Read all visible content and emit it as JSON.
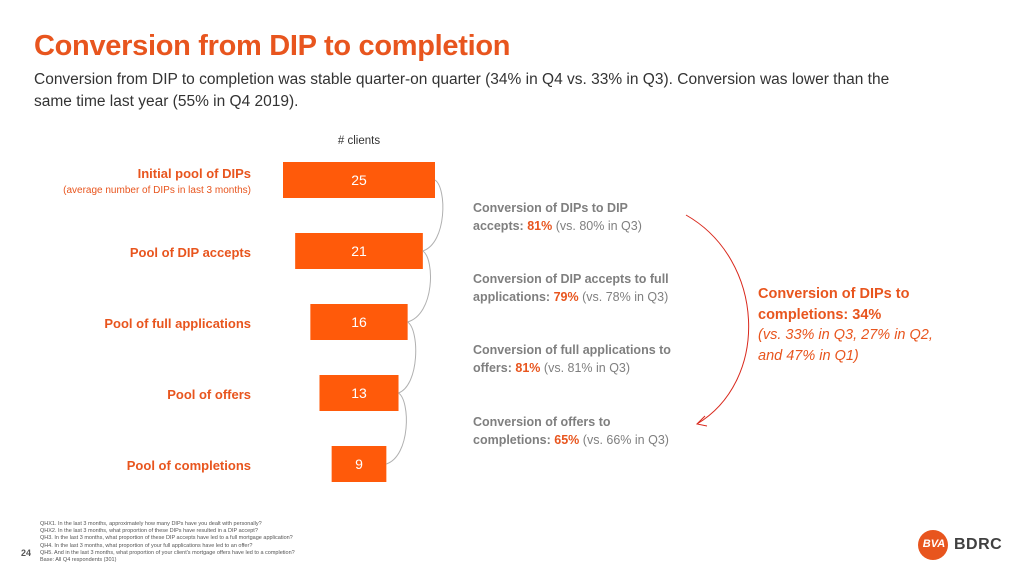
{
  "title": "Conversion from DIP to completion",
  "subtitle": "Conversion from DIP to completion was stable quarter-on quarter (34% in Q4 vs. 33% in Q3). Conversion was lower than the same time last year (55% in Q4 2019).",
  "chart_data": {
    "type": "bar",
    "orientation": "horizontal-funnel",
    "axis_label": "# clients",
    "categories": [
      "Initial pool of DIPs",
      "Pool of DIP accepts",
      "Pool of full applications",
      "Pool of offers",
      "Pool of completions"
    ],
    "values": [
      25,
      21,
      16,
      13,
      9
    ],
    "value_labels": [
      "25",
      "21",
      "16",
      "13",
      "9"
    ],
    "first_category_note": "(average number of DIPs in last 3 months)",
    "bar_color": "#ff5a0a"
  },
  "conversions": [
    {
      "line1": "Conversion of DIPs to DIP",
      "line2": "accepts:",
      "pct": "81%",
      "comparison": "(vs. 80% in Q3)"
    },
    {
      "line1": "Conversion of DIP accepts to full",
      "line2": "applications:",
      "pct": "79%",
      "comparison": "(vs. 78% in Q3)"
    },
    {
      "line1": "Conversion of full applications to",
      "line2": "offers:",
      "pct": "81%",
      "comparison": "(vs. 81% in Q3)"
    },
    {
      "line1": "Conversion of offers to",
      "line2": "completions:",
      "pct": "65%",
      "comparison": "(vs. 66% in Q3)"
    }
  ],
  "overall": {
    "line1": "Conversion of DIPs to",
    "line2": "completions: 34%",
    "line3": "(vs. 33% in Q3,  27% in Q2,",
    "line4": "and 47% in Q1)"
  },
  "footnotes": [
    "QHX1. In the last 3 months, approximately how many DIPs have you dealt with personally?",
    "QHX2. In the last 3 months, what proportion of these DIPs have resulted in a DIP accept?",
    "QH3. In the last 3 months, what proportion of these DIP accepts have led to a full mortgage application?",
    "QH4. In the last 3 months, what proportion of your full applications have led to an offer?",
    "QH5. And in the last 3 months, what proportion of your client's mortgage offers have led to a completion?",
    "Base: All Q4 respondents (301)"
  ],
  "page_number": "24",
  "logo": {
    "mark": "BVA",
    "text": "BDRC"
  },
  "colors": {
    "accent": "#e8551e",
    "bar": "#ff5a0a",
    "muted": "#7f7f7f"
  }
}
